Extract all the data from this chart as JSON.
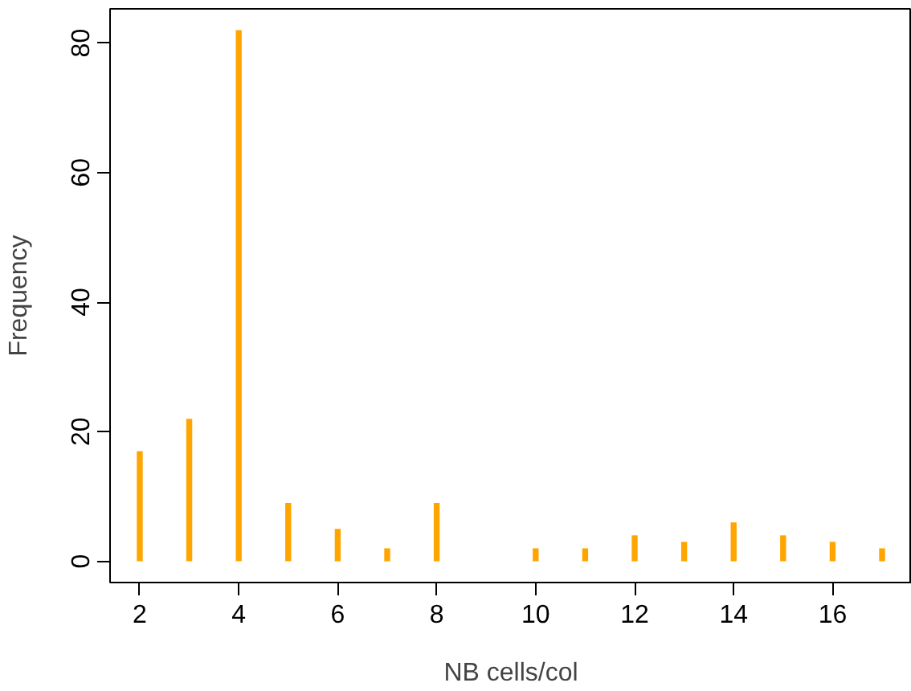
{
  "chart_data": {
    "type": "bar",
    "xlabel": "NB cells/col",
    "ylabel": "Frequency",
    "x": [
      2,
      3,
      4,
      5,
      6,
      7,
      8,
      10,
      11,
      12,
      13,
      14,
      15,
      16,
      17
    ],
    "values": [
      17,
      22,
      82,
      9,
      5,
      2,
      9,
      2,
      2,
      4,
      3,
      6,
      4,
      3,
      2
    ],
    "color": "#ffa500",
    "xlim": [
      1.4,
      17.6
    ],
    "ylim": [
      -3.28,
      85.28
    ],
    "xticks": [
      2,
      4,
      6,
      8,
      10,
      12,
      14,
      16
    ],
    "yticks": [
      0,
      20,
      40,
      60,
      80
    ],
    "grid": false
  }
}
